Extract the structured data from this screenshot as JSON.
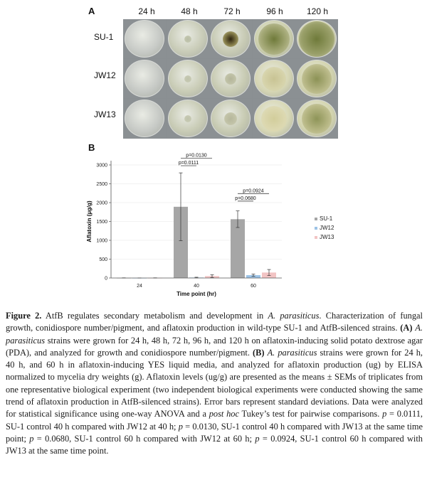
{
  "panel_a": {
    "label": "A",
    "timepoints": [
      "24 h",
      "48 h",
      "72 h",
      "96 h",
      "120 h"
    ],
    "strains": [
      "SU-1",
      "JW12",
      "JW13"
    ],
    "colony_colors": {
      "agar": "#c9cdb7",
      "dark_center": "#2e2410",
      "spore_green": "#6f7a3a"
    }
  },
  "panel_b": {
    "label": "B"
  },
  "chart_data": {
    "type": "bar",
    "xlabel": "Time point (hr)",
    "ylabel": "Aflatoxin (µg/g)",
    "categories": [
      "24",
      "40",
      "60"
    ],
    "ylim": [
      0,
      3000
    ],
    "yticks": [
      "0",
      "500",
      "1000",
      "1500",
      "2000",
      "2500",
      "3000"
    ],
    "legend_position": "right",
    "series": [
      {
        "name": "SU-1",
        "color": "#a6a6a6",
        "values": [
          2,
          1890,
          1560
        ],
        "errors": [
          3,
          900,
          220
        ]
      },
      {
        "name": "JW12",
        "color": "#9cc3e6",
        "values": [
          1,
          12,
          75
        ],
        "errors": [
          1,
          8,
          30
        ]
      },
      {
        "name": "JW13",
        "color": "#f2c4c4",
        "values": [
          2,
          50,
          145
        ],
        "errors": [
          3,
          35,
          80
        ]
      }
    ],
    "annotations": [
      {
        "text": "p=0.0130",
        "category": "40",
        "from": "SU-1",
        "to": "JW13",
        "y": 3180
      },
      {
        "text": "p=0.0111",
        "category": "40",
        "from": "SU-1",
        "to": "JW12",
        "y": 2980
      },
      {
        "text": "p=0.0924",
        "category": "60",
        "from": "SU-1",
        "to": "JW13",
        "y": 2240
      },
      {
        "text": "p=0.0680",
        "category": "60",
        "from": "SU-1",
        "to": "JW12",
        "y": 2040
      }
    ]
  },
  "caption": {
    "figure_label": "Figure 2.",
    "l1_a": " AtfB regulates secondary metabolism and development in ",
    "l1_i": "A. parasiticus",
    "l1_b": ". Characterization of fungal growth, conidiospore number/pigment, and aflatoxin production in wild-type SU-1 and AtfB-silenced strains. ",
    "A_tag": "(A)",
    "A_sp": " ",
    "A_i": "A. parasiticus",
    "A_text": " strains were grown for 24 h, 48 h, 72 h, 96 h, and 120 h on aflatoxin-inducing solid potato dextrose agar (PDA), and analyzed for growth and conidiospore number/pigment. ",
    "B_tag": "(B)",
    "B_sp": " ",
    "B_i": "A. parasiticus",
    "B_text": " strains were grown for 24 h, 40 h, and 60 h in aflatoxin-inducing YES liquid media, and analyzed for aflatoxin production (ug) by ELISA normalized to mycelia dry weights (g). Aflatoxin levels (ug/g) are presented as the means ± SEMs of triplicates from one representative biological experiment (two independent biological experiments were conducted showing the same trend of aflatoxin production in AtfB-silenced strains). Error bars represent standard deviations. Data were analyzed for statistical significance using one-way ANOVA and a ",
    "posthoc_i": "post hoc",
    "tail_1": " Tukey’s test for pairwise comparisons. ",
    "p1_i": "p",
    "p1_t": " = 0.0111, SU-1 control 40 h compared with JW12 at 40 h; ",
    "p2_i": "p",
    "p2_t": " = 0.0130, SU-1 control 40 h compared with JW13 at the same time point; ",
    "p3_i": "p",
    "p3_t": " = 0.0680, SU-1 control 60 h compared with JW12 at 60 h; ",
    "p4_i": "p",
    "p4_t": " = 0.0924, SU-1 control 60 h compared with JW13 at the same time point."
  }
}
